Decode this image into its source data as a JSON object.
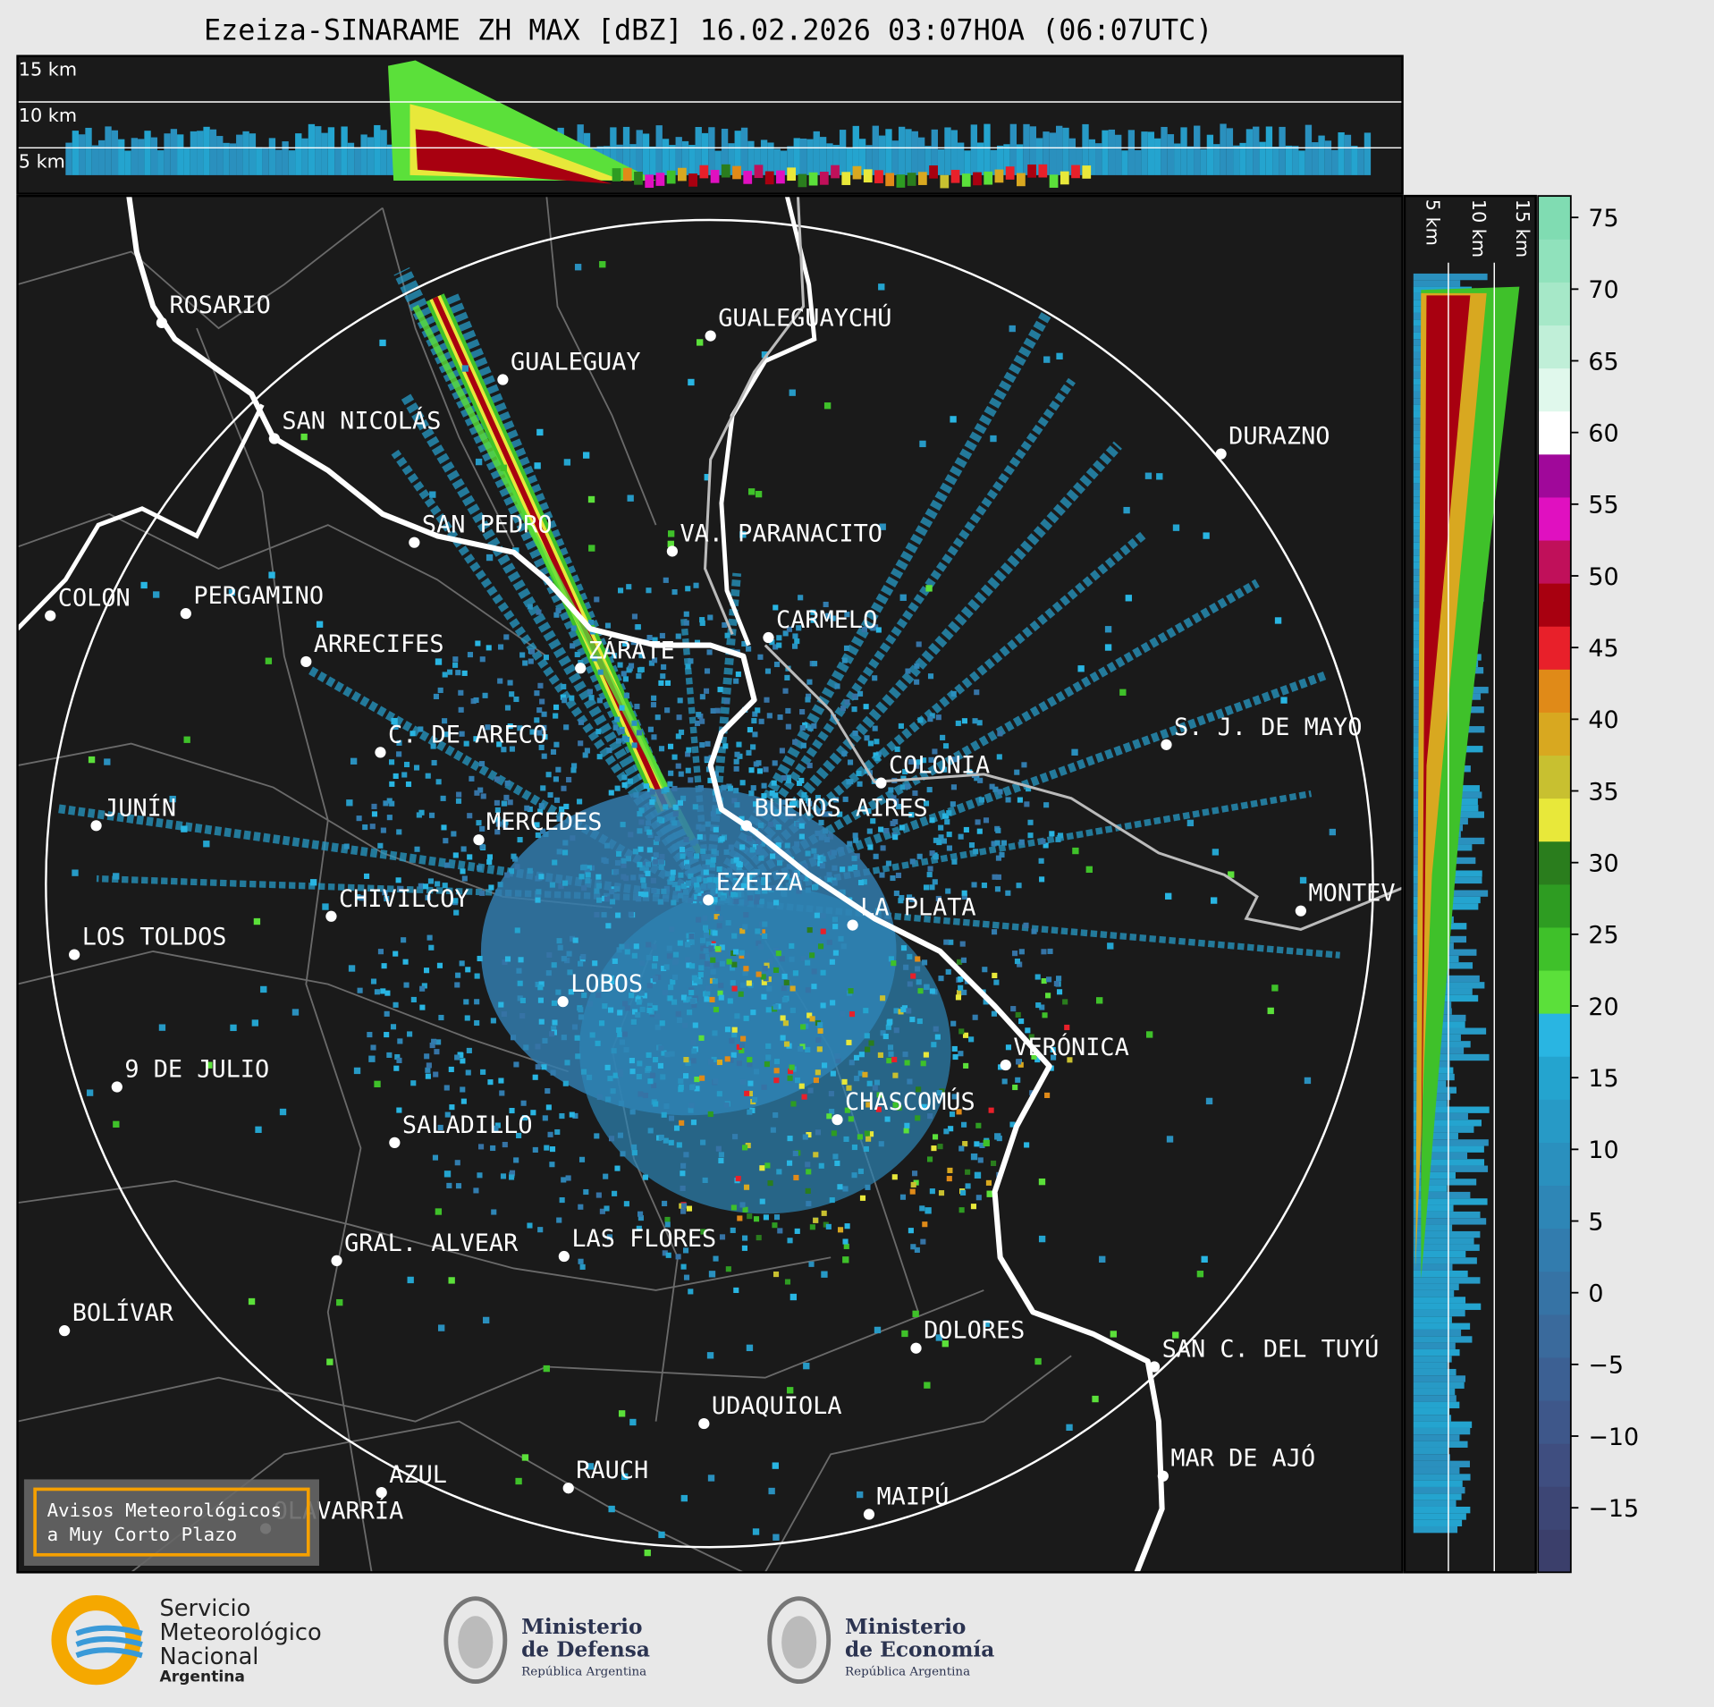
{
  "title": "Ezeiza-SINARAME ZH MAX [dBZ] 16.02.2026 03:07HOA (06:07UTC)",
  "profile_top": {
    "levels": [
      "15 km",
      "10 km",
      "5 km"
    ]
  },
  "profile_side": {
    "levels": [
      "5 km",
      "10 km",
      "15 km"
    ]
  },
  "cities": [
    {
      "name": "ROSARIO"
    },
    {
      "name": "GUALEGUAYCHÚ"
    },
    {
      "name": "GUALEGUAY"
    },
    {
      "name": "SAN NICOLÁS"
    },
    {
      "name": "DURAZNO"
    },
    {
      "name": "SAN PEDRO"
    },
    {
      "name": "VA. PARANACITO"
    },
    {
      "name": "COLON"
    },
    {
      "name": "PERGAMINO"
    },
    {
      "name": "CARMELO"
    },
    {
      "name": "ARRECIFES"
    },
    {
      "name": "ZÁRATE"
    },
    {
      "name": "S. J. DE MAYO"
    },
    {
      "name": "C. DE ARECO"
    },
    {
      "name": "COLONIA"
    },
    {
      "name": "BUENOS AIRES"
    },
    {
      "name": "JUNÍN"
    },
    {
      "name": "MERCEDES"
    },
    {
      "name": "EZEIZA"
    },
    {
      "name": "CHIVILCOY"
    },
    {
      "name": "MONTEV"
    },
    {
      "name": "LA PLATA"
    },
    {
      "name": "LOS TOLDOS"
    },
    {
      "name": "LOBOS"
    },
    {
      "name": "VERÓNICA"
    },
    {
      "name": "9 DE JULIO"
    },
    {
      "name": "CHASCOMÚS"
    },
    {
      "name": "SALADILLO"
    },
    {
      "name": "GRAL. ALVEAR"
    },
    {
      "name": "LAS FLORES"
    },
    {
      "name": "BOLÍVAR"
    },
    {
      "name": "DOLORES"
    },
    {
      "name": "SAN C. DEL TUYÚ"
    },
    {
      "name": "UDAQUIOLA"
    },
    {
      "name": "MAR DE AJÓ"
    },
    {
      "name": "AZUL"
    },
    {
      "name": "RAUCH"
    },
    {
      "name": "MAIPÚ"
    },
    {
      "name": "OLAVARRÍA"
    }
  ],
  "colorbar": {
    "lim": [
      -19.5,
      76.5
    ],
    "ticks": [
      75,
      70,
      65,
      60,
      55,
      50,
      45,
      40,
      35,
      30,
      25,
      20,
      15,
      10,
      5,
      0,
      {
        "value": -5,
        "label": "−5"
      },
      {
        "value": -10,
        "label": "−10"
      },
      {
        "value": -15,
        "label": "−15"
      }
    ],
    "colors": [
      "#3b3f6b",
      "#3d4675",
      "#3f4e80",
      "#3e578a",
      "#3c6093",
      "#3a6a9c",
      "#3673a5",
      "#327cae",
      "#2e86b6",
      "#2a90be",
      "#279ac6",
      "#24a4cf",
      "#29b5e2",
      "#5be03a",
      "#3fc12a",
      "#2e9c22",
      "#2a7d1d",
      "#e8e83a",
      "#c8c030",
      "#d8a820",
      "#e08a18",
      "#e8202a",
      "#a80010",
      "#c0105a",
      "#e010c0",
      "#a0089a",
      "#ffffff",
      "#e0f8ec",
      "#c0efd8",
      "#a6e8c8",
      "#90e2bc",
      "#80dcb2"
    ]
  },
  "notice": [
    "Avisos Meteorológicos",
    "a Muy Corto Plazo"
  ],
  "logos": [
    {
      "lines": [
        "Servicio",
        "Meteorológico",
        "Nacional",
        "Argentina"
      ]
    },
    {
      "lines": [
        "Ministerio",
        "de Defensa",
        "República Argentina"
      ]
    },
    {
      "lines": [
        "Ministerio",
        "de Economía",
        "República Argentina"
      ]
    }
  ]
}
